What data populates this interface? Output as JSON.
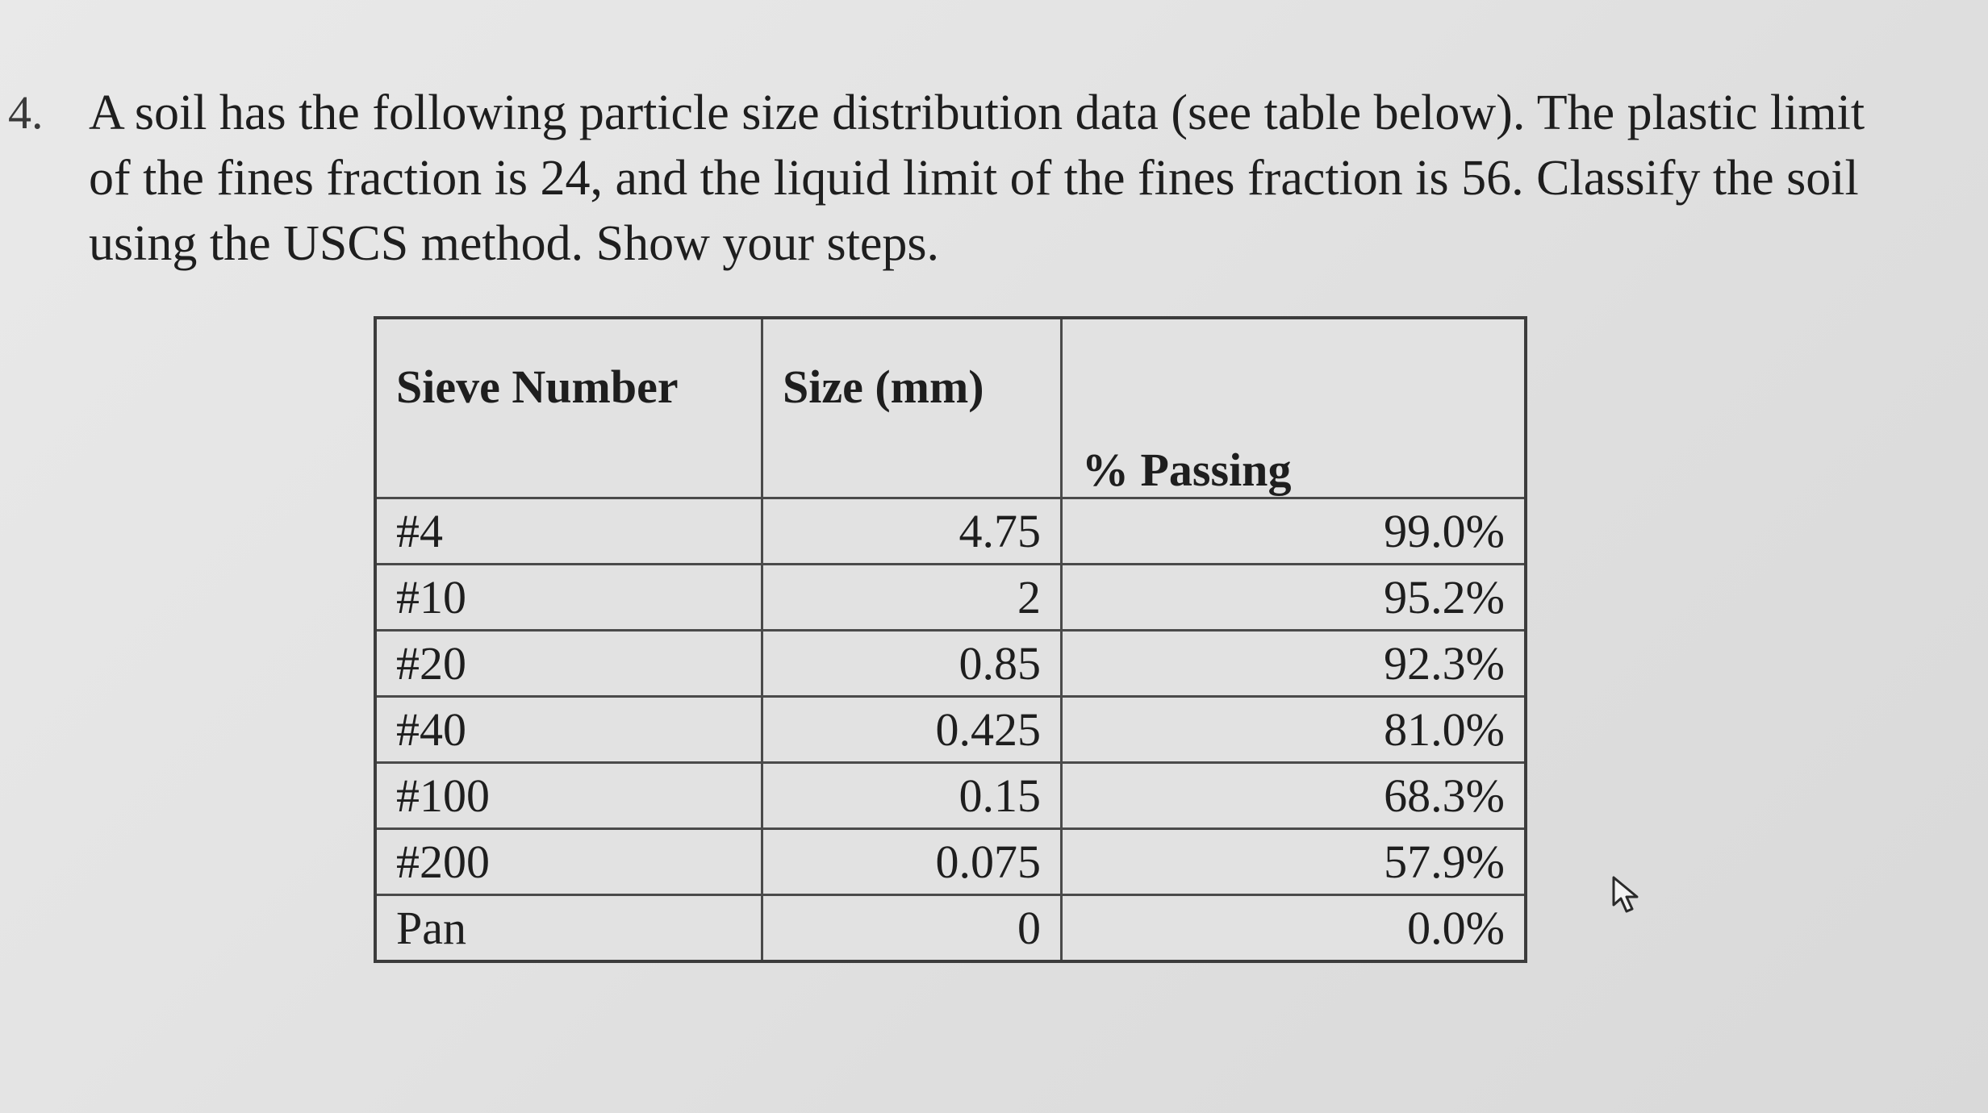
{
  "question": {
    "number": "4.",
    "lines": [
      "A soil has the following particle size distribution data (see table below). The plastic limit",
      "of the fines fraction is 24, and the liquid limit of the fines fraction is 56. Classify the soil",
      "using the USCS method. Show your steps."
    ]
  },
  "table": {
    "headers": [
      "Sieve Number",
      "Size (mm)",
      "% Passing"
    ],
    "rows": [
      [
        "#4",
        "4.75",
        "99.0%"
      ],
      [
        "#10",
        "2",
        "95.2%"
      ],
      [
        "#20",
        "0.85",
        "92.3%"
      ],
      [
        "#40",
        "0.425",
        "81.0%"
      ],
      [
        "#100",
        "0.15",
        "68.3%"
      ],
      [
        "#200",
        "0.075",
        "57.9%"
      ],
      [
        "Pan",
        "0",
        "0.0%"
      ]
    ]
  },
  "icons": {
    "cursor": "mouse-pointer-icon"
  }
}
